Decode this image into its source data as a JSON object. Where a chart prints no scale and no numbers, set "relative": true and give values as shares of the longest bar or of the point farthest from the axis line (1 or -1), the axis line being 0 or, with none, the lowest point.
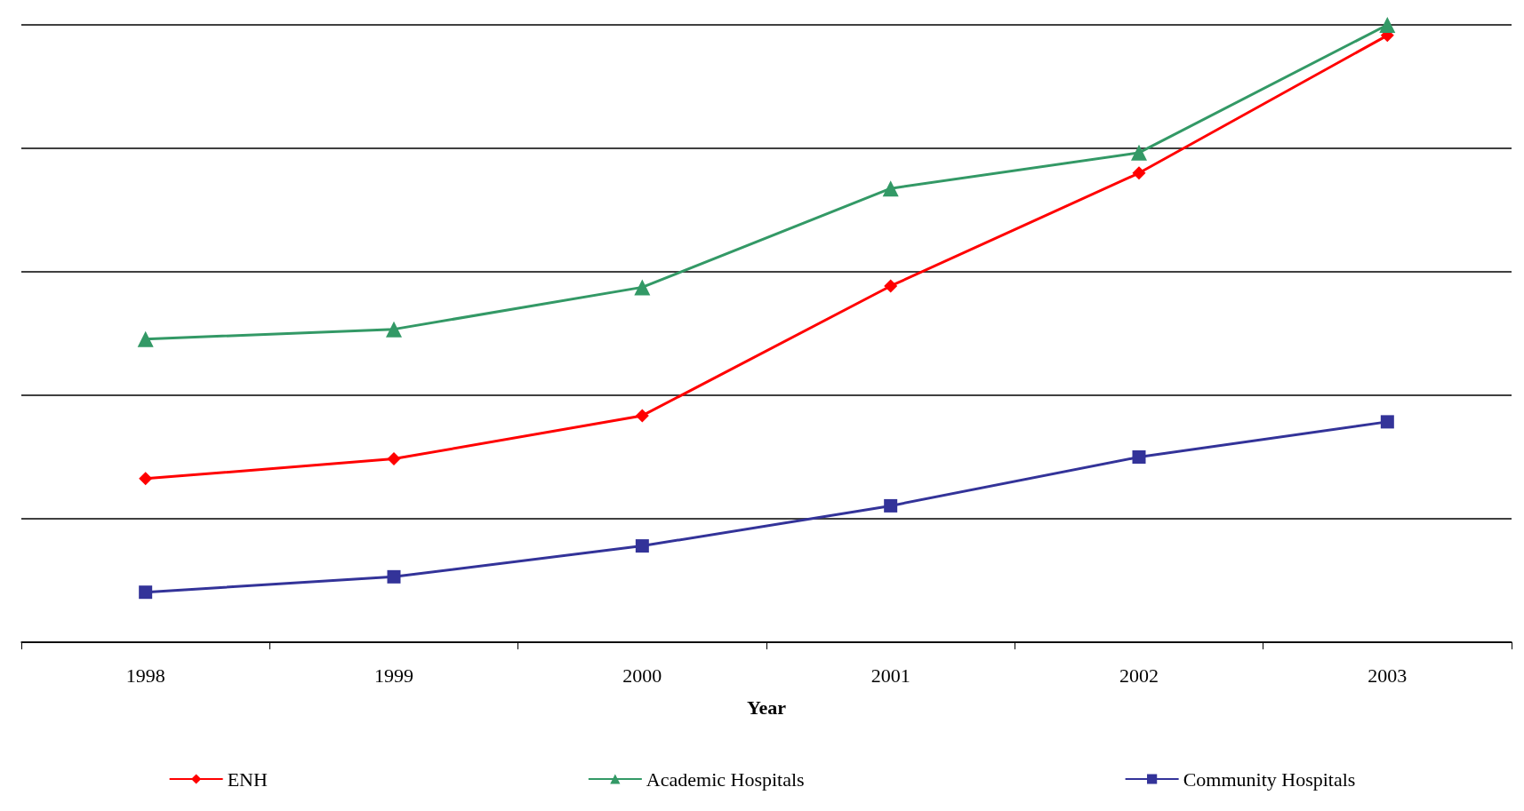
{
  "chart_data": {
    "type": "line",
    "xlabel": "Year",
    "categories": [
      "1998",
      "1999",
      "2000",
      "2001",
      "2002",
      "2003"
    ],
    "relative": true,
    "grid": "y",
    "legend": "bottom",
    "series": [
      {
        "name": "ENH",
        "color": "#ff0000",
        "marker": "diamond",
        "values": [
          0.265,
          0.297,
          0.367,
          0.577,
          0.76,
          0.983
        ]
      },
      {
        "name": "Academic Hospitals",
        "color": "#339966",
        "marker": "triangle",
        "values": [
          0.491,
          0.507,
          0.575,
          0.735,
          0.793,
          1.0
        ]
      },
      {
        "name": "Community Hospitals",
        "color": "#333399",
        "marker": "square",
        "values": [
          0.081,
          0.106,
          0.156,
          0.221,
          0.3,
          0.357
        ]
      }
    ]
  }
}
